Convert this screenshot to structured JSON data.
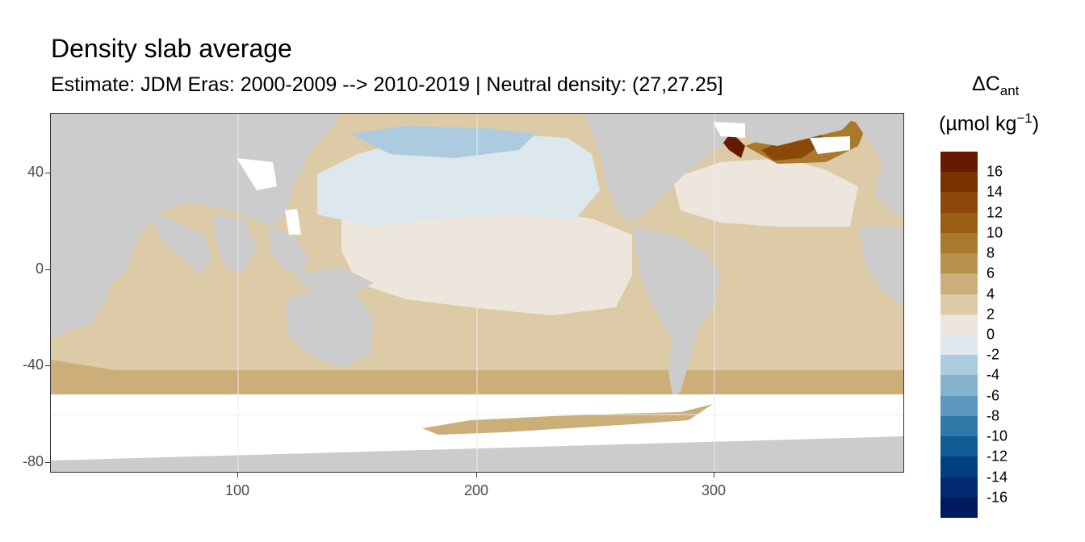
{
  "title": "Density slab average",
  "subtitle": "Estimate: JDM Eras: 2000-2009 --> 2010-2019 | Neutral density: (27,27.25]",
  "legend": {
    "title_line1_prefix": "ΔC",
    "title_line1_sub": "ant",
    "title_line2_prefix": "(µmol kg",
    "title_line2_sup": "−1",
    "title_line2_suffix": ")",
    "bins": [
      {
        "color": "#661a00"
      },
      {
        "color": "#7a3200"
      },
      {
        "color": "#8c4808"
      },
      {
        "color": "#9a5e14"
      },
      {
        "color": "#a97a2b"
      },
      {
        "color": "#b8924c"
      },
      {
        "color": "#cbae78"
      },
      {
        "color": "#ddcba7"
      },
      {
        "color": "#ede6dc"
      },
      {
        "color": "#dde7ee"
      },
      {
        "color": "#adcbde"
      },
      {
        "color": "#84b2cf"
      },
      {
        "color": "#5b97bf"
      },
      {
        "color": "#2f79a9"
      },
      {
        "color": "#125c94"
      },
      {
        "color": "#034081"
      },
      {
        "color": "#02296f"
      },
      {
        "color": "#001a5e"
      }
    ],
    "labels": [
      "16",
      "14",
      "12",
      "10",
      "8",
      "6",
      "4",
      "2",
      "0",
      "-2",
      "-4",
      "-6",
      "-8",
      "-10",
      "-12",
      "-14",
      "-16"
    ]
  },
  "axes": {
    "y_ticks": [
      "40",
      "0",
      "-40",
      "-80"
    ],
    "x_ticks": [
      "100",
      "200",
      "300"
    ]
  },
  "chart_data": {
    "type": "heatmap",
    "title": "Density slab average",
    "subtitle": "Estimate: JDM Eras: 2000-2009 --> 2010-2019 | Neutral density: (27,27.25]",
    "x_axis": {
      "ticks": [
        100,
        200,
        300
      ],
      "range": [
        20,
        380
      ]
    },
    "y_axis": {
      "ticks": [
        40,
        0,
        -40,
        -80
      ],
      "range": [
        -85,
        65
      ]
    },
    "colorbar": {
      "label": "ΔCant (µmol kg−1)",
      "breaks": [
        16,
        14,
        12,
        10,
        8,
        6,
        4,
        2,
        0,
        -2,
        -4,
        -6,
        -8,
        -10,
        -12,
        -14,
        -16
      ]
    },
    "grid": true,
    "land_color": "#cccccc",
    "no_data_color": "#ffffff"
  }
}
